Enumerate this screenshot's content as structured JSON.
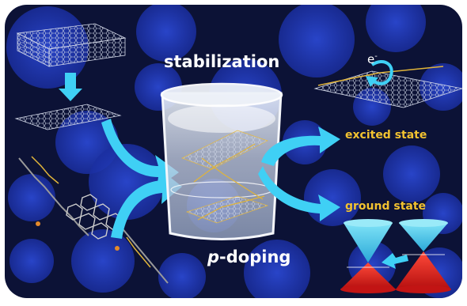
{
  "labels": {
    "stabilization": "stabilization",
    "doping_prefix": "p",
    "doping_suffix": "-doping",
    "excited_state": "excited state",
    "ground_state": "ground state",
    "electron": "e",
    "electron_sup": "-"
  },
  "colors": {
    "background": "#0c1236",
    "bubble": "#1f36b5",
    "arrow": "#3fd0f5",
    "label_text": "#f2c230",
    "cone_upper": "#5fd6f3",
    "cone_lower": "#e21c1c",
    "molecule_backbone": "#9a9a9a",
    "molecule_chain": "#e0b43a"
  }
}
